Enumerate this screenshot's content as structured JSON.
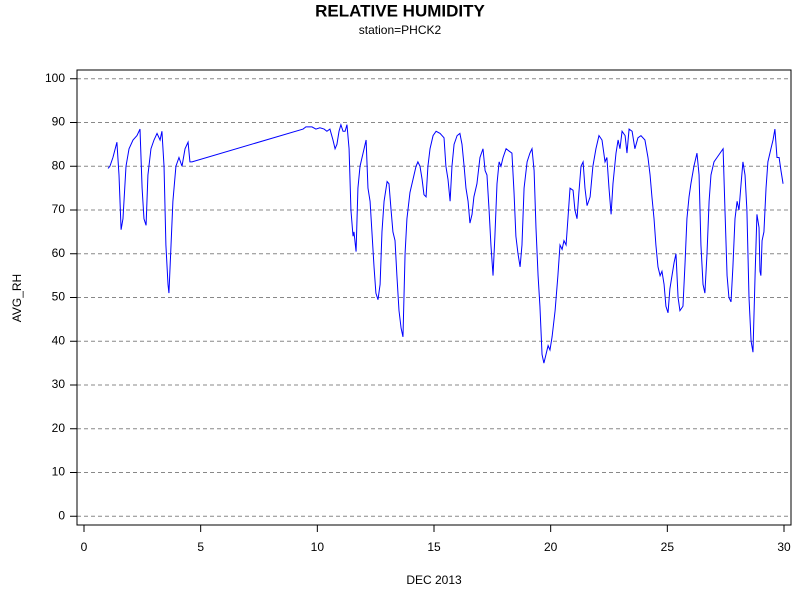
{
  "chart_data": {
    "type": "line",
    "title": "RELATIVE HUMIDITY",
    "subtitle": "station=PHCK2",
    "xlabel": "DEC 2013",
    "ylabel": "AVG_RH",
    "xlim": [
      -0.3,
      30.3
    ],
    "xticks": [
      0,
      5,
      10,
      15,
      20,
      25,
      30
    ],
    "ylim": [
      -2,
      102
    ],
    "yticks": [
      0,
      10,
      20,
      30,
      40,
      50,
      60,
      70,
      80,
      90,
      100
    ],
    "grid": true,
    "series": [
      {
        "color": "#0000ff",
        "x": [
          1.03,
          1.11,
          1.24,
          1.41,
          1.5,
          1.59,
          1.67,
          1.8,
          1.93,
          2.1,
          2.27,
          2.4,
          2.49,
          2.57,
          2.66,
          2.74,
          2.87,
          3.0,
          3.13,
          3.26,
          3.34,
          3.43,
          3.51,
          3.6,
          3.64,
          3.73,
          3.81,
          3.94,
          4.07,
          4.2,
          4.33,
          4.46,
          4.54,
          4.63,
          9.39,
          9.51,
          9.77,
          9.94,
          10.11,
          10.29,
          10.41,
          10.54,
          10.67,
          10.76,
          10.84,
          10.93,
          11.01,
          11.1,
          11.19,
          11.27,
          11.36,
          11.44,
          11.53,
          11.57,
          11.66,
          11.74,
          11.83,
          11.96,
          12.09,
          12.17,
          12.26,
          12.34,
          12.43,
          12.51,
          12.6,
          12.69,
          12.77,
          12.86,
          12.99,
          13.07,
          13.16,
          13.24,
          13.33,
          13.41,
          13.5,
          13.59,
          13.67,
          13.76,
          13.84,
          13.97,
          14.1,
          14.23,
          14.31,
          14.4,
          14.49,
          14.57,
          14.66,
          14.74,
          14.83,
          14.96,
          15.09,
          15.26,
          15.43,
          15.51,
          15.6,
          15.69,
          15.77,
          15.86,
          15.99,
          16.11,
          16.2,
          16.29,
          16.37,
          16.46,
          16.54,
          16.63,
          16.71,
          16.84,
          16.97,
          17.1,
          17.19,
          17.27,
          17.36,
          17.44,
          17.53,
          17.61,
          17.7,
          17.79,
          17.87,
          17.96,
          18.09,
          18.21,
          18.34,
          18.43,
          18.51,
          18.6,
          18.69,
          18.77,
          18.86,
          18.99,
          19.11,
          19.2,
          19.29,
          19.37,
          19.46,
          19.54,
          19.63,
          19.71,
          19.8,
          19.89,
          19.97,
          20.06,
          20.19,
          20.31,
          20.4,
          20.49,
          20.57,
          20.66,
          20.74,
          20.83,
          20.96,
          21.04,
          21.13,
          21.21,
          21.3,
          21.39,
          21.47,
          21.56,
          21.69,
          21.81,
          21.94,
          22.07,
          22.2,
          22.33,
          22.41,
          22.5,
          22.59,
          22.67,
          22.8,
          22.89,
          22.97,
          23.06,
          23.19,
          23.27,
          23.36,
          23.49,
          23.61,
          23.74,
          23.87,
          24.04,
          24.17,
          24.26,
          24.34,
          24.43,
          24.51,
          24.6,
          24.69,
          24.77,
          24.86,
          24.94,
          25.03,
          25.11,
          25.2,
          25.29,
          25.37,
          25.46,
          25.54,
          25.67,
          25.76,
          25.84,
          25.93,
          26.01,
          26.14,
          26.27,
          26.36,
          26.44,
          26.53,
          26.61,
          26.7,
          26.79,
          26.87,
          27.0,
          27.13,
          27.26,
          27.39,
          27.47,
          27.56,
          27.64,
          27.73,
          27.81,
          27.9,
          27.99,
          28.07,
          28.16,
          28.24,
          28.33,
          28.41,
          28.5,
          28.59,
          28.67,
          28.76,
          28.84,
          28.93,
          28.97,
          29.01,
          29.06,
          29.14,
          29.23,
          29.31,
          29.44,
          29.53,
          29.61,
          29.7,
          29.79,
          29.87,
          29.96
        ],
        "values": [
          79.5,
          80,
          82,
          85.5,
          78,
          65.5,
          68,
          80,
          84,
          86,
          87,
          88.5,
          75,
          68,
          66.5,
          78,
          84,
          86,
          87.5,
          86,
          88,
          80,
          62,
          53,
          51,
          62,
          72,
          80,
          82,
          80,
          84,
          85.5,
          81,
          81,
          88.5,
          89,
          89,
          88.5,
          88.8,
          88.5,
          88,
          88.5,
          86,
          84,
          85,
          88,
          89.5,
          88,
          88,
          89.5,
          84,
          70,
          64,
          65,
          60.5,
          75,
          80,
          83,
          86,
          75,
          72,
          65,
          57,
          51,
          49.5,
          53,
          65,
          72,
          76.5,
          76,
          70,
          65,
          63,
          55,
          47,
          43,
          41,
          60,
          68,
          74,
          77,
          80,
          81,
          80,
          77,
          73.5,
          73,
          80,
          84,
          87,
          88,
          87.5,
          86.5,
          80,
          77,
          72,
          80,
          85,
          87,
          87.5,
          85,
          80,
          75,
          72,
          67,
          69,
          73,
          76,
          82,
          84,
          79,
          78,
          70,
          62,
          55,
          64,
          76,
          81,
          80,
          82,
          84,
          83.5,
          83,
          74,
          64,
          60,
          57,
          62,
          75,
          81,
          83,
          84,
          79,
          66,
          55,
          48,
          37,
          35,
          37,
          39,
          38,
          41,
          47,
          55,
          62,
          61,
          63,
          62,
          68,
          75,
          74.5,
          70,
          68,
          74,
          80,
          81,
          75,
          71,
          73,
          80,
          84,
          87,
          86,
          81,
          82,
          75,
          69,
          76,
          83,
          86,
          84,
          88,
          87,
          83,
          88.5,
          88,
          84,
          86.5,
          87,
          86,
          82,
          78,
          73,
          68,
          62,
          57,
          55,
          56,
          53,
          48,
          46.5,
          52,
          55,
          58,
          60,
          50,
          47,
          48,
          58,
          68,
          73,
          76,
          80,
          83,
          78,
          62,
          53,
          51,
          60,
          72,
          78,
          81,
          82,
          83,
          84,
          70,
          55,
          50,
          49,
          57,
          68,
          72,
          70,
          76,
          81,
          78,
          70,
          50,
          40,
          37.5,
          55,
          69,
          66,
          56,
          55,
          63,
          65,
          75,
          81,
          84,
          86,
          88.5,
          82,
          82,
          79,
          76
        ]
      }
    ]
  }
}
